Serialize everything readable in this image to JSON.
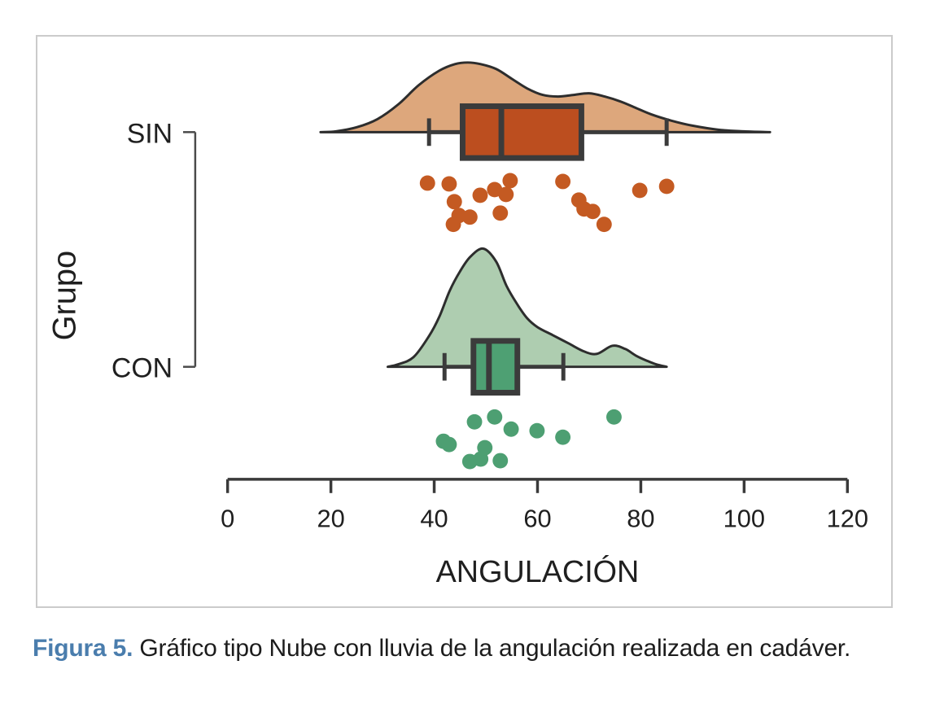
{
  "figure": {
    "caption": {
      "label": "Figura 5.",
      "text": " Gráfico tipo Nube con lluvia de la angulación realizada en cadáver."
    }
  },
  "colors": {
    "panel_border": "#cbcbcb",
    "outline": "#2d2d2d",
    "box_outline": "#3b3b3b",
    "axis": "#3a3a3a",
    "text": "#1f1f1f",
    "caption_accent": "#4a7dad",
    "sin_density_fill": "#dda77c",
    "sin_box_fill": "#bc4e1f",
    "sin_dot": "#c45a22",
    "con_density_fill": "#aecdb0",
    "con_box_fill": "#4ea073",
    "con_dot": "#4d9f72"
  },
  "chart_data": {
    "type": "raincloud",
    "subtype": "half-violin + boxplot + jittered points",
    "xlabel": "ANGULACIÓN",
    "ylabel": "Grupo",
    "xlim": [
      0,
      120
    ],
    "x_ticks": [
      0,
      20,
      40,
      60,
      80,
      100,
      120
    ],
    "categories": [
      "SIN",
      "CON"
    ],
    "legend": "none",
    "grid": false,
    "groups": [
      {
        "label": "SIN",
        "fill_light": "#dda77c",
        "fill_dark": "#bc4e1f",
        "dot_color": "#c45a22",
        "box": {
          "whisker_low": 39,
          "q1": 45.5,
          "median": 53,
          "q3": 68.5,
          "whisker_high": 85
        },
        "density": [
          [
            18,
            0
          ],
          [
            21,
            1
          ],
          [
            25,
            6
          ],
          [
            29,
            16
          ],
          [
            33,
            34
          ],
          [
            37,
            58
          ],
          [
            41,
            76
          ],
          [
            44,
            84
          ],
          [
            46.5,
            86
          ],
          [
            49,
            84
          ],
          [
            52,
            78
          ],
          [
            55,
            66
          ],
          [
            58,
            54
          ],
          [
            61,
            46
          ],
          [
            64,
            44
          ],
          [
            67,
            46
          ],
          [
            70,
            48
          ],
          [
            73,
            44
          ],
          [
            76,
            38
          ],
          [
            79,
            30
          ],
          [
            82,
            22
          ],
          [
            86,
            14
          ],
          [
            90,
            8
          ],
          [
            95,
            3
          ],
          [
            100,
            1
          ],
          [
            105,
            0
          ]
        ],
        "points": [
          [
            38.7,
            63
          ],
          [
            42.9,
            64
          ],
          [
            43.9,
            86
          ],
          [
            44.8,
            103
          ],
          [
            43.7,
            114
          ],
          [
            46.9,
            105
          ],
          [
            48.9,
            78
          ],
          [
            51.7,
            71
          ],
          [
            53.9,
            77
          ],
          [
            54.7,
            60
          ],
          [
            52.8,
            100
          ],
          [
            64.9,
            61
          ],
          [
            68.0,
            84
          ],
          [
            69.0,
            95
          ],
          [
            70.7,
            98
          ],
          [
            72.9,
            114
          ],
          [
            79.8,
            72
          ],
          [
            85.0,
            67
          ]
        ],
        "values": [
          39,
          43,
          44,
          45,
          44,
          47,
          49,
          52,
          54,
          55,
          53,
          65,
          68,
          69,
          71,
          73,
          80,
          85
        ]
      },
      {
        "label": "CON",
        "fill_light": "#aecdb0",
        "fill_dark": "#4ea073",
        "dot_color": "#4d9f72",
        "box": {
          "whisker_low": 42,
          "q1": 47.6,
          "median": 50.6,
          "q3": 56.1,
          "whisker_high": 65
        },
        "density": [
          [
            31,
            0
          ],
          [
            33,
            3
          ],
          [
            36,
            12
          ],
          [
            39,
            38
          ],
          [
            41,
            62
          ],
          [
            43,
            94
          ],
          [
            45,
            118
          ],
          [
            47,
            136
          ],
          [
            49.5,
            146
          ],
          [
            52,
            130
          ],
          [
            54,
            100
          ],
          [
            56,
            78
          ],
          [
            58,
            60
          ],
          [
            60,
            49
          ],
          [
            63,
            39
          ],
          [
            66,
            29
          ],
          [
            69,
            19
          ],
          [
            71.5,
            16
          ],
          [
            74.5,
            26
          ],
          [
            77,
            22
          ],
          [
            79,
            14
          ],
          [
            81,
            8
          ],
          [
            83,
            3
          ],
          [
            85,
            0
          ]
        ],
        "points": [
          [
            41.8,
            92
          ],
          [
            42.9,
            96
          ],
          [
            47.8,
            68
          ],
          [
            46.9,
            117
          ],
          [
            49.0,
            114
          ],
          [
            49.8,
            100
          ],
          [
            51.7,
            62
          ],
          [
            52.8,
            116
          ],
          [
            54.9,
            77
          ],
          [
            59.9,
            79
          ],
          [
            64.9,
            87
          ],
          [
            74.8,
            62
          ]
        ],
        "values": [
          42,
          43,
          48,
          47,
          49,
          50,
          52,
          53,
          55,
          60,
          65,
          75
        ]
      }
    ]
  }
}
